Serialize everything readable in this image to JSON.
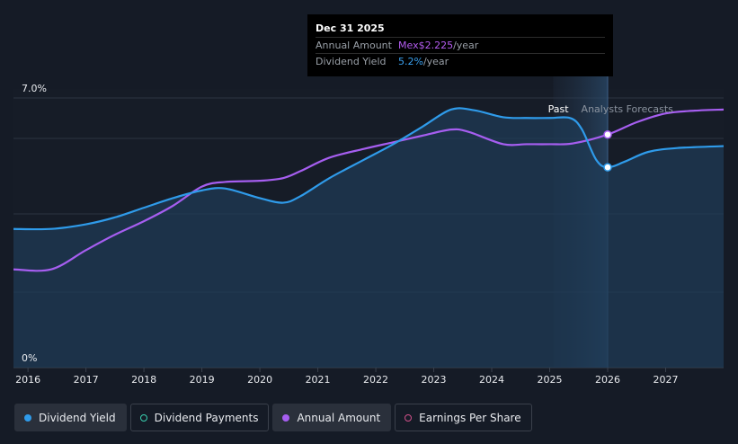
{
  "tooltip": {
    "date": "Dec 31 2025",
    "annual_label": "Annual Amount",
    "annual_value": "Mex$2.225",
    "annual_unit": "/year",
    "yield_label": "Dividend Yield",
    "yield_value": "5.2%",
    "yield_unit": "/year"
  },
  "legend": {
    "items": [
      {
        "label": "Dividend Yield",
        "color": "#2f9bea",
        "style": "filled",
        "active": true
      },
      {
        "label": "Dividend Payments",
        "color": "#3ad0b0",
        "style": "hollow",
        "active": false
      },
      {
        "label": "Annual Amount",
        "color": "#a65ef0",
        "style": "filled",
        "active": true
      },
      {
        "label": "Earnings Per Share",
        "color": "#d0508a",
        "style": "hollow",
        "active": false
      }
    ]
  },
  "chart_data": {
    "type": "line",
    "title": "",
    "xlabel": "",
    "ylabel": "",
    "ylim": [
      0,
      7
    ],
    "y_ticks": [
      "0%",
      "7.0%"
    ],
    "x_ticks": [
      "2016",
      "2017",
      "2018",
      "2019",
      "2020",
      "2021",
      "2022",
      "2023",
      "2024",
      "2025",
      "2026",
      "2027"
    ],
    "xlim": [
      2015.75,
      2028.0
    ],
    "grid": true,
    "regions": {
      "past_label": "Past",
      "forecast_label": "Analysts Forecasts",
      "forecast_start": 2025.45,
      "current": 2026.0
    },
    "series": [
      {
        "name": "Dividend Yield",
        "color": "#2f9bea",
        "unit": "%",
        "points": [
          [
            2015.75,
            3.6
          ],
          [
            2016.4,
            3.6
          ],
          [
            2017.0,
            3.72
          ],
          [
            2017.5,
            3.9
          ],
          [
            2018.0,
            4.15
          ],
          [
            2018.5,
            4.4
          ],
          [
            2019.0,
            4.6
          ],
          [
            2019.4,
            4.65
          ],
          [
            2020.0,
            4.4
          ],
          [
            2020.4,
            4.28
          ],
          [
            2020.7,
            4.45
          ],
          [
            2021.2,
            4.92
          ],
          [
            2021.8,
            5.4
          ],
          [
            2022.3,
            5.8
          ],
          [
            2022.8,
            6.25
          ],
          [
            2023.3,
            6.7
          ],
          [
            2023.7,
            6.68
          ],
          [
            2024.2,
            6.5
          ],
          [
            2024.6,
            6.48
          ],
          [
            2025.0,
            6.48
          ],
          [
            2025.35,
            6.48
          ],
          [
            2025.55,
            6.2
          ],
          [
            2025.8,
            5.4
          ],
          [
            2026.0,
            5.2
          ],
          [
            2026.3,
            5.35
          ],
          [
            2026.7,
            5.6
          ],
          [
            2027.2,
            5.7
          ],
          [
            2028.0,
            5.75
          ]
        ]
      },
      {
        "name": "Annual Amount",
        "color": "#a65ef0",
        "unit": "Mex$",
        "points": [
          [
            2015.75,
            2.55
          ],
          [
            2016.4,
            2.55
          ],
          [
            2017.0,
            3.05
          ],
          [
            2017.5,
            3.45
          ],
          [
            2018.0,
            3.8
          ],
          [
            2018.5,
            4.2
          ],
          [
            2019.0,
            4.7
          ],
          [
            2019.4,
            4.82
          ],
          [
            2020.0,
            4.85
          ],
          [
            2020.4,
            4.92
          ],
          [
            2020.7,
            5.1
          ],
          [
            2021.2,
            5.45
          ],
          [
            2021.8,
            5.68
          ],
          [
            2022.3,
            5.85
          ],
          [
            2022.8,
            6.02
          ],
          [
            2023.3,
            6.18
          ],
          [
            2023.6,
            6.12
          ],
          [
            2024.2,
            5.8
          ],
          [
            2024.6,
            5.8
          ],
          [
            2025.0,
            5.8
          ],
          [
            2025.4,
            5.82
          ],
          [
            2026.0,
            6.05
          ],
          [
            2026.5,
            6.37
          ],
          [
            2027.0,
            6.6
          ],
          [
            2027.5,
            6.67
          ],
          [
            2028.0,
            6.7
          ]
        ]
      }
    ],
    "highlight": [
      {
        "series": "Dividend Yield",
        "x": 2026.0,
        "y": 5.2
      },
      {
        "series": "Annual Amount",
        "x": 2026.0,
        "y": 6.05
      }
    ]
  }
}
